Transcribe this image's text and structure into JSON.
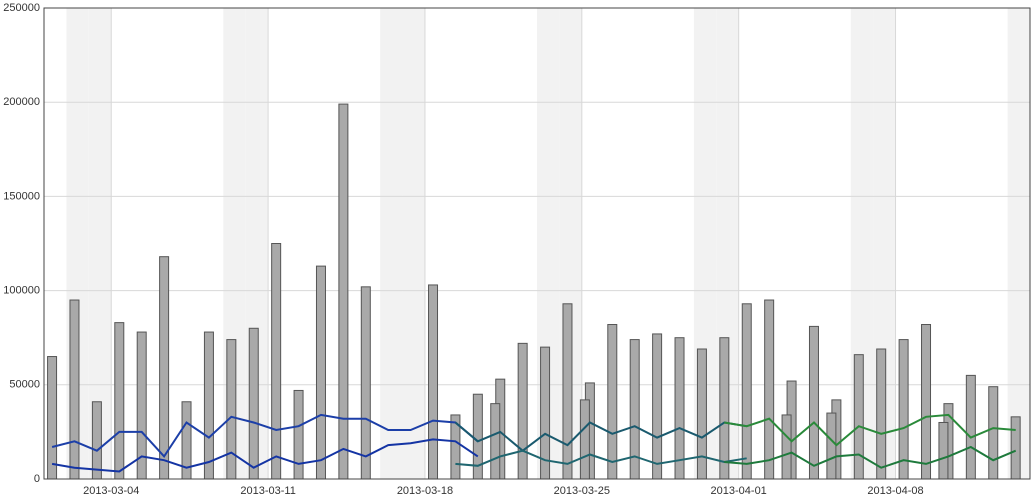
{
  "chart_data": {
    "type": "combo",
    "x": [
      "2013-03-01",
      "2013-03-02",
      "2013-03-03",
      "2013-03-04",
      "2013-03-05",
      "2013-03-06",
      "2013-03-07",
      "2013-03-08",
      "2013-03-09",
      "2013-03-10",
      "2013-03-11",
      "2013-03-12",
      "2013-03-13",
      "2013-03-14",
      "2013-03-15",
      "2013-03-16",
      "2013-03-17",
      "2013-03-18",
      "2013-03-19",
      "2013-03-20",
      "2013-03-21",
      "2013-03-22",
      "2013-03-23",
      "2013-03-24",
      "2013-03-25",
      "2013-03-26",
      "2013-03-27",
      "2013-03-28",
      "2013-03-29",
      "2013-03-30",
      "2013-03-31",
      "2013-04-01",
      "2013-04-02",
      "2013-04-03",
      "2013-04-04",
      "2013-04-05",
      "2013-04-06",
      "2013-04-07",
      "2013-04-08",
      "2013-04-09",
      "2013-04-10",
      "2013-04-11",
      "2013-04-12",
      "2013-04-13"
    ],
    "bars": [
      {
        "color": "#a9a9a9",
        "values": [
          65000,
          95000,
          41000,
          83000,
          78000,
          118000,
          41000,
          78000,
          74000,
          80000,
          125000,
          47000,
          113000,
          199000,
          102000,
          null,
          null,
          103000,
          34000,
          45000,
          53000,
          72000,
          70000,
          93000,
          51000,
          82000,
          74000,
          77000,
          75000,
          69000,
          75000,
          93000,
          95000,
          52000,
          81000,
          42000,
          66000,
          69000,
          74000,
          82000,
          40000,
          55000,
          49000,
          33000
        ]
      },
      {
        "color": "#a9a9a9",
        "values": [
          null,
          null,
          null,
          null,
          null,
          null,
          null,
          null,
          null,
          null,
          null,
          null,
          null,
          null,
          null,
          null,
          null,
          null,
          null,
          null,
          40000,
          null,
          null,
          null,
          42000,
          null,
          null,
          null,
          null,
          null,
          null,
          null,
          null,
          34000,
          null,
          35000,
          null,
          null,
          null,
          null,
          30000,
          null,
          null,
          null
        ]
      }
    ],
    "series": [
      {
        "color": "#1c3fa8",
        "values": [
          17000,
          20000,
          15000,
          25000,
          25000,
          12000,
          30000,
          22000,
          33000,
          30000,
          26000,
          28000,
          34000,
          32000,
          32000,
          26000,
          26000,
          31000,
          30000,
          20000,
          null,
          null,
          null,
          null,
          null,
          null,
          null,
          null,
          null,
          null,
          null,
          null,
          null,
          null,
          null,
          null,
          null,
          null,
          null,
          null,
          null,
          null,
          null,
          null
        ]
      },
      {
        "color": "#1434a4",
        "values": [
          8000,
          6000,
          5000,
          4000,
          12000,
          10000,
          6000,
          9000,
          14000,
          6000,
          12000,
          8000,
          10000,
          16000,
          12000,
          18000,
          19000,
          21000,
          20000,
          12000,
          null,
          null,
          null,
          null,
          null,
          null,
          null,
          null,
          null,
          null,
          null,
          null,
          null,
          null,
          null,
          null,
          null,
          null,
          null,
          null,
          null,
          null,
          null,
          null
        ]
      },
      {
        "color": "#1a5a6e",
        "values": [
          null,
          null,
          null,
          null,
          null,
          null,
          null,
          null,
          null,
          null,
          null,
          null,
          null,
          null,
          null,
          null,
          null,
          null,
          30000,
          20000,
          25000,
          15000,
          24000,
          18000,
          30000,
          24000,
          28000,
          22000,
          27000,
          22000,
          30000,
          28000,
          null,
          null,
          null,
          null,
          null,
          null,
          null,
          null,
          null,
          null,
          null,
          null
        ]
      },
      {
        "color": "#1f6670",
        "values": [
          null,
          null,
          null,
          null,
          null,
          null,
          null,
          null,
          null,
          null,
          null,
          null,
          null,
          null,
          null,
          null,
          null,
          null,
          8000,
          7000,
          12000,
          15000,
          10000,
          8000,
          13000,
          9000,
          12000,
          8000,
          10000,
          12000,
          9000,
          11000,
          null,
          null,
          null,
          null,
          null,
          null,
          null,
          null,
          null,
          null,
          null,
          null
        ]
      },
      {
        "color": "#2a8a3a",
        "values": [
          null,
          null,
          null,
          null,
          null,
          null,
          null,
          null,
          null,
          null,
          null,
          null,
          null,
          null,
          null,
          null,
          null,
          null,
          null,
          null,
          null,
          null,
          null,
          null,
          null,
          null,
          null,
          null,
          null,
          null,
          30000,
          28000,
          32000,
          20000,
          30000,
          18000,
          28000,
          24000,
          27000,
          33000,
          34000,
          22000,
          27000,
          26000
        ]
      },
      {
        "color": "#1e7a3c",
        "values": [
          null,
          null,
          null,
          null,
          null,
          null,
          null,
          null,
          null,
          null,
          null,
          null,
          null,
          null,
          null,
          null,
          null,
          null,
          null,
          null,
          null,
          null,
          null,
          null,
          null,
          null,
          null,
          null,
          null,
          null,
          9000,
          8000,
          10000,
          14000,
          7000,
          12000,
          13000,
          6000,
          10000,
          8000,
          12000,
          17000,
          10000,
          15000
        ]
      }
    ],
    "xlim": [
      "2013-03-01",
      "2013-04-14"
    ],
    "xticks": [
      "2013-03-04",
      "2013-03-11",
      "2013-03-18",
      "2013-03-25",
      "2013-04-01",
      "2013-04-08"
    ],
    "ylim": [
      0,
      250000
    ],
    "yticks": [
      0,
      50000,
      100000,
      150000,
      200000,
      250000
    ],
    "grid": true
  }
}
